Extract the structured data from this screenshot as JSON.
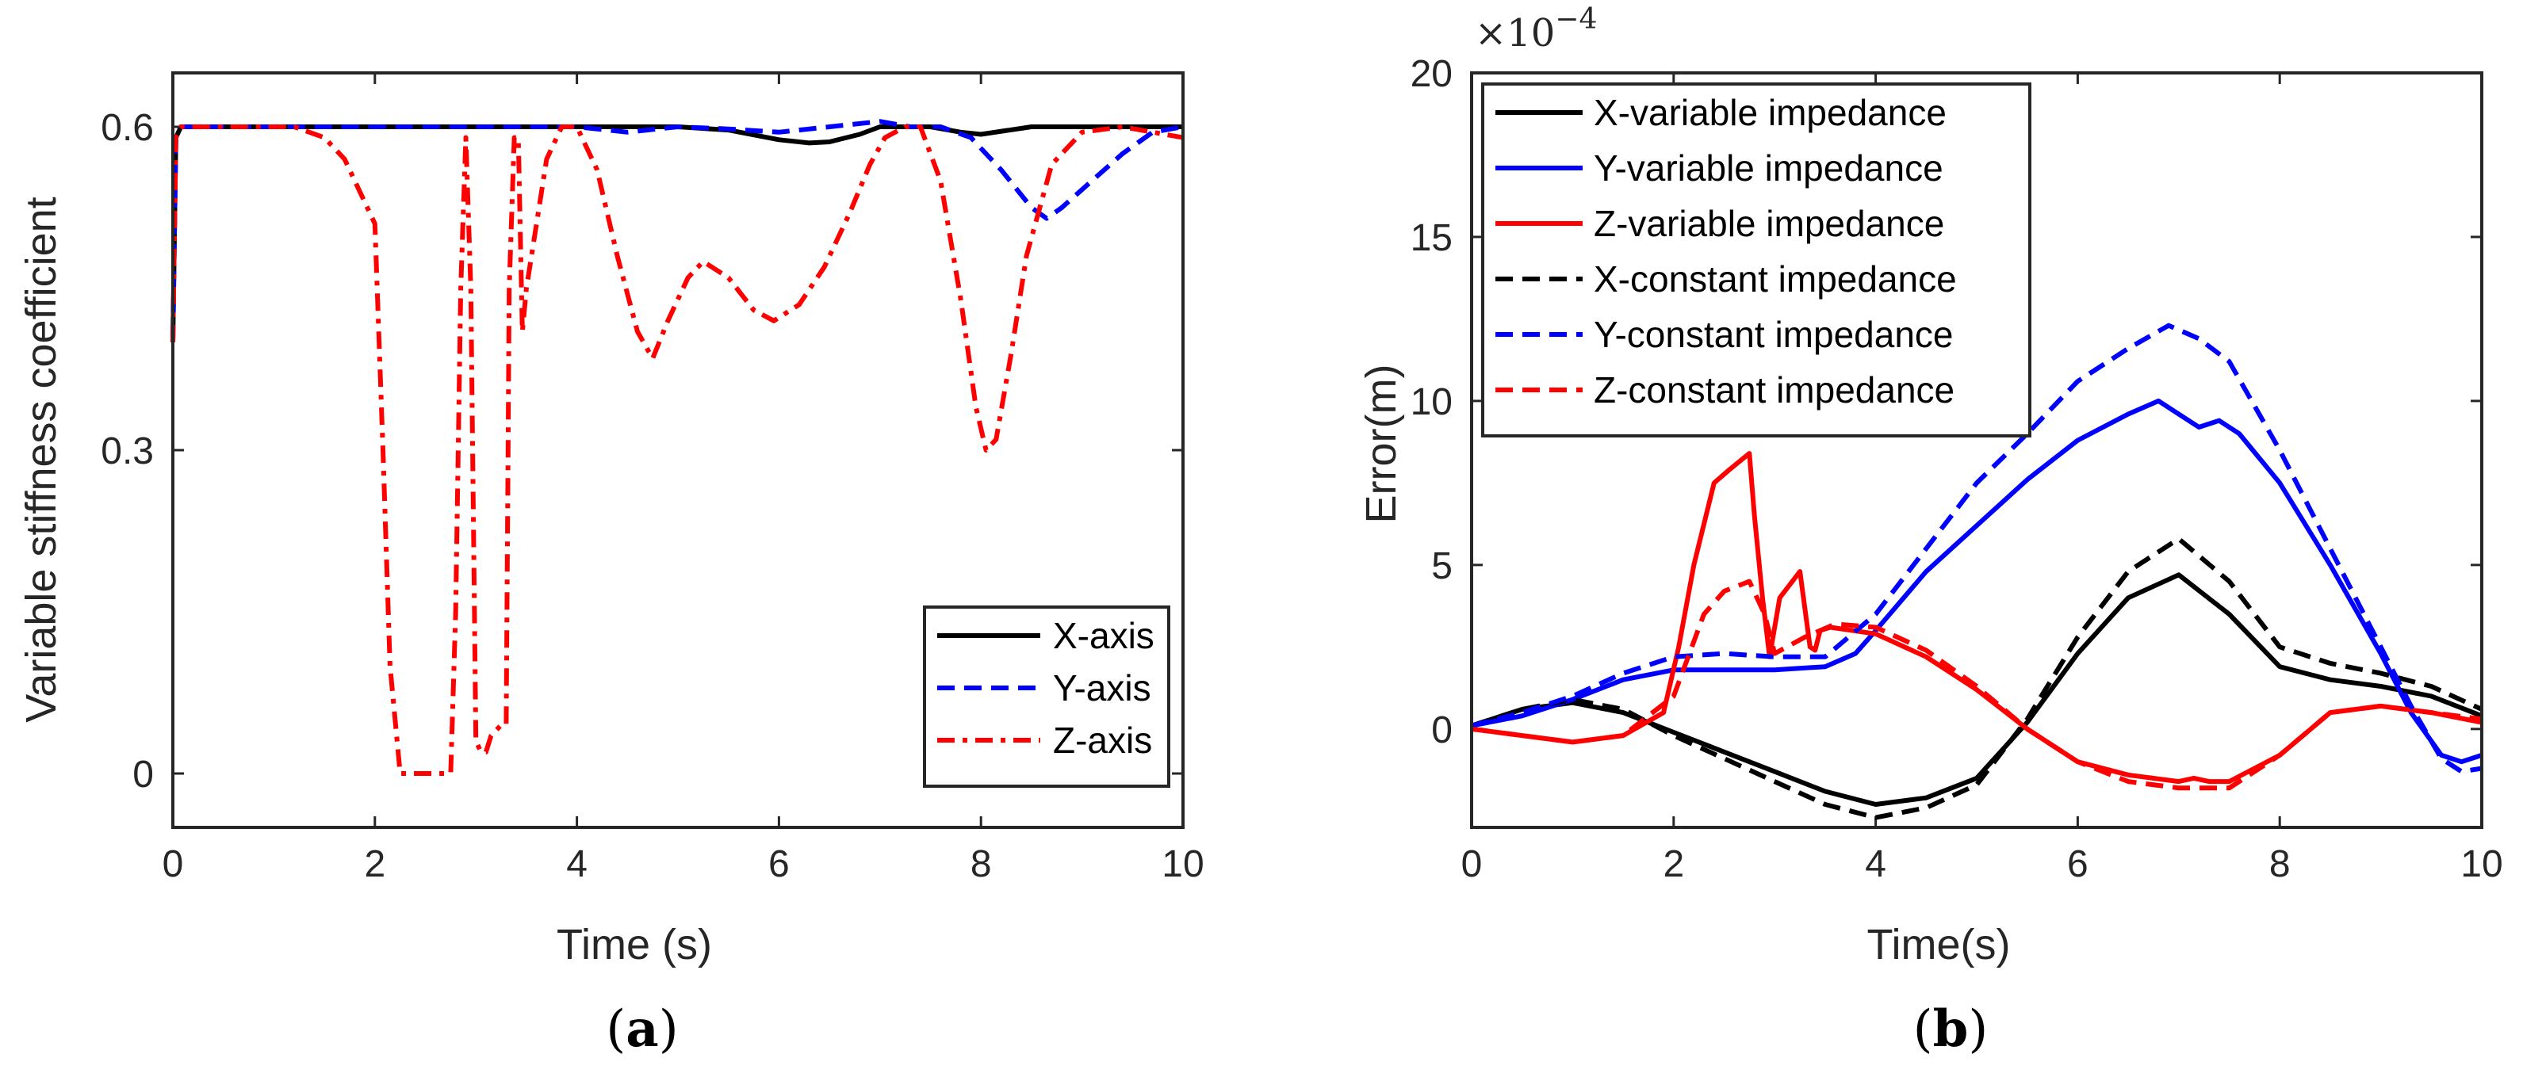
{
  "chart_data": [
    {
      "type": "line",
      "caption_letter": "a",
      "xlabel": "Time (s)",
      "ylabel": "Variable stiffness coefficient",
      "xlim": [
        0,
        10
      ],
      "ylim": [
        -0.05,
        0.65
      ],
      "xticks": [
        0,
        2,
        4,
        6,
        8,
        10
      ],
      "xtick_labels": [
        "0",
        "2",
        "4",
        "6",
        "8",
        "10"
      ],
      "yticks": [
        0,
        0.3,
        0.6
      ],
      "ytick_labels": [
        "0",
        "0.3",
        "0.6"
      ],
      "legend_position": "bottom-right",
      "series": [
        {
          "name": "X-axis",
          "color": "#000000",
          "style": "solid",
          "x": [
            0,
            0.03,
            0.08,
            0.2,
            1,
            2,
            3,
            4,
            5,
            5.5,
            6,
            6.3,
            6.5,
            6.8,
            7,
            7.5,
            7.8,
            8,
            8.5,
            9,
            10
          ],
          "y": [
            0.4,
            0.59,
            0.6,
            0.6,
            0.6,
            0.6,
            0.6,
            0.6,
            0.6,
            0.597,
            0.588,
            0.585,
            0.586,
            0.593,
            0.6,
            0.6,
            0.595,
            0.593,
            0.6,
            0.6,
            0.6
          ]
        },
        {
          "name": "Y-axis",
          "color": "#0000ff",
          "style": "dash",
          "x": [
            0,
            0.03,
            0.08,
            0.2,
            3,
            4,
            4.5,
            5,
            5.5,
            6,
            6.5,
            7,
            7.3,
            7.6,
            7.9,
            8.2,
            8.5,
            8.65,
            8.8,
            9.1,
            9.4,
            9.7,
            10
          ],
          "y": [
            0.4,
            0.59,
            0.6,
            0.6,
            0.6,
            0.6,
            0.595,
            0.6,
            0.598,
            0.595,
            0.6,
            0.605,
            0.6,
            0.6,
            0.59,
            0.56,
            0.525,
            0.515,
            0.525,
            0.55,
            0.575,
            0.595,
            0.6
          ]
        },
        {
          "name": "Z-axis",
          "color": "#ff0000",
          "style": "dashdot",
          "x": [
            0,
            0.03,
            0.08,
            0.2,
            1.2,
            1.5,
            1.7,
            1.9,
            2.0,
            2.08,
            2.15,
            2.25,
            2.45,
            2.75,
            2.8,
            2.85,
            2.9,
            2.95,
            3.0,
            3.05,
            3.1,
            3.15,
            3.25,
            3.3,
            3.33,
            3.38,
            3.42,
            3.46,
            3.5,
            3.55,
            3.7,
            3.85,
            4.0,
            4.2,
            4.4,
            4.6,
            4.75,
            4.9,
            5.1,
            5.25,
            5.5,
            5.75,
            5.95,
            6.2,
            6.45,
            6.7,
            6.9,
            7.05,
            7.25,
            7.4,
            7.6,
            7.8,
            7.95,
            8.05,
            8.15,
            8.3,
            8.45,
            8.7,
            9,
            9.4,
            10
          ],
          "y": [
            0.4,
            0.59,
            0.6,
            0.6,
            0.6,
            0.59,
            0.57,
            0.53,
            0.51,
            0.3,
            0.1,
            0.0,
            0.0,
            0.0,
            0.15,
            0.45,
            0.59,
            0.45,
            0.03,
            0.02,
            0.02,
            0.035,
            0.045,
            0.045,
            0.45,
            0.59,
            0.59,
            0.41,
            0.45,
            0.48,
            0.57,
            0.6,
            0.6,
            0.56,
            0.48,
            0.41,
            0.385,
            0.42,
            0.46,
            0.475,
            0.46,
            0.43,
            0.42,
            0.435,
            0.47,
            0.52,
            0.565,
            0.59,
            0.6,
            0.6,
            0.55,
            0.44,
            0.34,
            0.3,
            0.31,
            0.39,
            0.48,
            0.565,
            0.595,
            0.6,
            0.59
          ]
        }
      ]
    },
    {
      "type": "line",
      "caption_letter": "b",
      "xlabel": "Time(s)",
      "ylabel": "Error(m)",
      "y_multiplier": "×10",
      "y_exponent": "−4",
      "xlim": [
        0,
        10
      ],
      "ylim": [
        -3,
        20
      ],
      "xticks": [
        0,
        2,
        4,
        6,
        8,
        10
      ],
      "xtick_labels": [
        "0",
        "2",
        "4",
        "6",
        "8",
        "10"
      ],
      "yticks": [
        0,
        5,
        10,
        15,
        20
      ],
      "ytick_labels": [
        "0",
        "5",
        "10",
        "15",
        "20"
      ],
      "legend_position": "top-left",
      "series": [
        {
          "name": "X-variable impedance",
          "color": "#000000",
          "style": "solid",
          "x": [
            0,
            0.5,
            1,
            1.5,
            2,
            2.5,
            3,
            3.5,
            4,
            4.5,
            5,
            5.5,
            6,
            6.5,
            7,
            7.5,
            8,
            8.5,
            9,
            9.5,
            10
          ],
          "y": [
            0.1,
            0.6,
            0.8,
            0.5,
            -0.1,
            -0.7,
            -1.3,
            -1.9,
            -2.3,
            -2.1,
            -1.5,
            0.2,
            2.3,
            4.0,
            4.7,
            3.5,
            1.9,
            1.5,
            1.3,
            1.0,
            0.4
          ]
        },
        {
          "name": "Y-variable impedance",
          "color": "#0000ff",
          "style": "solid",
          "x": [
            0,
            0.5,
            1,
            1.5,
            2,
            2.5,
            3,
            3.5,
            3.8,
            4,
            4.5,
            5,
            5.5,
            6,
            6.5,
            6.8,
            7,
            7.2,
            7.4,
            7.6,
            8,
            8.5,
            9,
            9.3,
            9.6,
            9.8,
            10
          ],
          "y": [
            0.1,
            0.4,
            0.9,
            1.5,
            1.8,
            1.8,
            1.8,
            1.9,
            2.3,
            3.0,
            4.8,
            6.2,
            7.6,
            8.8,
            9.6,
            10.0,
            9.6,
            9.2,
            9.4,
            9.0,
            7.5,
            5.0,
            2.3,
            0.5,
            -0.8,
            -1.0,
            -0.8
          ]
        },
        {
          "name": "Z-variable impedance",
          "color": "#ff0000",
          "style": "solid",
          "x": [
            0,
            0.5,
            1,
            1.5,
            1.9,
            2.05,
            2.2,
            2.4,
            2.55,
            2.75,
            2.8,
            2.88,
            2.95,
            3.05,
            3.25,
            3.35,
            3.4,
            3.45,
            3.55,
            4,
            4.5,
            5,
            5.5,
            6,
            6.5,
            7,
            7.15,
            7.3,
            7.5,
            8,
            8.5,
            9,
            9.5,
            10
          ],
          "y": [
            0.0,
            -0.2,
            -0.4,
            -0.2,
            0.5,
            2.5,
            5.0,
            7.5,
            7.9,
            8.4,
            6.5,
            4.0,
            2.2,
            4.0,
            4.8,
            2.5,
            2.4,
            3.0,
            3.1,
            2.9,
            2.2,
            1.2,
            0.0,
            -1.0,
            -1.4,
            -1.6,
            -1.5,
            -1.6,
            -1.6,
            -0.8,
            0.5,
            0.7,
            0.5,
            0.2
          ]
        },
        {
          "name": "X-constant impedance",
          "color": "#000000",
          "style": "dash",
          "x": [
            0,
            0.5,
            1,
            1.5,
            2,
            2.5,
            3,
            3.5,
            4,
            4.5,
            5,
            5.5,
            6,
            6.5,
            7,
            7.5,
            8,
            8.5,
            9,
            9.5,
            10
          ],
          "y": [
            0.1,
            0.6,
            0.9,
            0.6,
            -0.2,
            -0.9,
            -1.6,
            -2.3,
            -2.7,
            -2.4,
            -1.7,
            0.3,
            2.8,
            4.8,
            5.8,
            4.5,
            2.5,
            2.0,
            1.7,
            1.3,
            0.6
          ]
        },
        {
          "name": "Y-constant impedance",
          "color": "#0000ff",
          "style": "dash",
          "x": [
            0,
            0.5,
            1,
            1.5,
            2,
            2.5,
            3,
            3.5,
            4,
            4.5,
            5,
            5.5,
            6,
            6.5,
            6.9,
            7.2,
            7.5,
            8,
            8.5,
            9,
            9.3,
            9.6,
            9.8,
            10
          ],
          "y": [
            0.1,
            0.5,
            1.0,
            1.7,
            2.2,
            2.3,
            2.2,
            2.2,
            3.5,
            5.5,
            7.5,
            9.0,
            10.6,
            11.6,
            12.3,
            11.9,
            11.2,
            8.5,
            5.5,
            2.5,
            0.7,
            -0.9,
            -1.3,
            -1.2
          ]
        },
        {
          "name": "Z-constant impedance",
          "color": "#ff0000",
          "style": "dash",
          "x": [
            0,
            0.5,
            1,
            1.5,
            2,
            2.3,
            2.5,
            2.75,
            2.9,
            3.0,
            3.3,
            3.6,
            4,
            4.5,
            5,
            5.5,
            6,
            6.5,
            7,
            7.5,
            8,
            8.5,
            9,
            9.5,
            10
          ],
          "y": [
            0.0,
            -0.2,
            -0.4,
            -0.2,
            1.0,
            3.5,
            4.2,
            4.5,
            3.5,
            2.3,
            2.8,
            3.2,
            3.1,
            2.4,
            1.3,
            0.0,
            -1.0,
            -1.6,
            -1.8,
            -1.8,
            -0.8,
            0.5,
            0.7,
            0.5,
            0.3
          ]
        }
      ]
    }
  ]
}
